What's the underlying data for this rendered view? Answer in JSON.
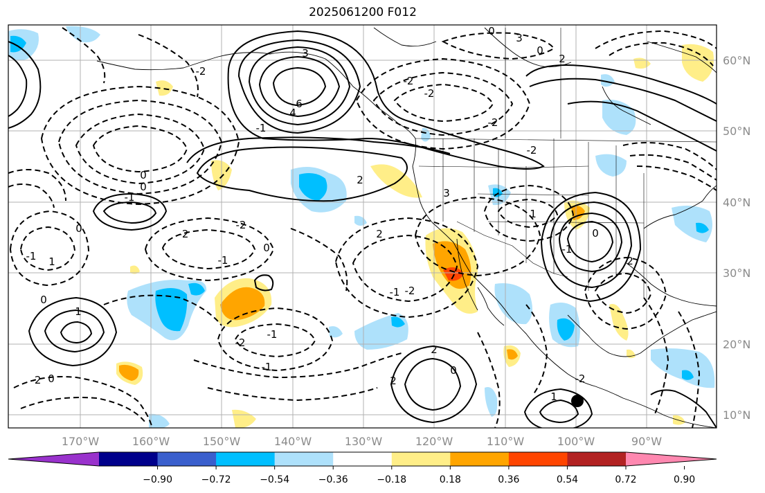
{
  "title": "2025061200 F012",
  "map": {
    "longitude_labels": [
      "170°W",
      "160°W",
      "150°W",
      "140°W",
      "130°W",
      "120°W",
      "110°W",
      "100°W",
      "90°W"
    ],
    "latitude_labels": [
      "60°N",
      "50°N",
      "40°N",
      "30°N",
      "20°N",
      "10°N"
    ],
    "contour_labels": [
      "3",
      "6",
      "4",
      "2",
      "-2",
      "-2",
      "-2",
      "-2",
      "-1",
      "0",
      "-1",
      "0",
      "0",
      "1",
      "-1",
      "-2",
      "-1",
      "-2",
      "-2",
      "-1",
      "0",
      "1",
      "2",
      "-2",
      "-1",
      "0",
      "2",
      "2",
      "1",
      "2",
      "0",
      "-1",
      "1",
      "-2",
      "3",
      "0",
      "0",
      "2",
      "-2",
      "3",
      "-1",
      "0",
      "-2",
      "0"
    ],
    "shading": {
      "positive_colors": [
        "#ffee88",
        "#ffa500",
        "#ff4500",
        "#b22222",
        "#ff88b0"
      ],
      "negative_colors": [
        "#aee1fb",
        "#00bfff",
        "#3a5fcd",
        "#00008b",
        "#9932cc"
      ]
    },
    "marker": "black-dot"
  },
  "colorbar": {
    "colors": [
      "#9932cc",
      "#00008b",
      "#3a5fcd",
      "#00bfff",
      "#aee1fb",
      "#ffffff",
      "#ffee88",
      "#ffa500",
      "#ff4500",
      "#b22222",
      "#ff88b0"
    ],
    "tick_labels": [
      "−0.90",
      "−0.72",
      "−0.54",
      "−0.36",
      "−0.18",
      "0.18",
      "0.36",
      "0.54",
      "0.72",
      "0.90"
    ]
  }
}
